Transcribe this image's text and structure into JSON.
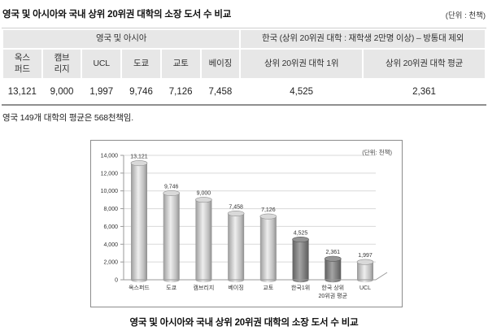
{
  "page": {
    "title": "영국 및 아시아와 국내 상위 20위권 대학의 소장 도서 수 비교",
    "unit_note": "(단위 : 천책)",
    "footnote": "영국 149개 대학의 평균은 568천책임.",
    "chart_caption": "영국 및 아시아와 국내 상위 20위권 대학의 소장 도서 수 비교"
  },
  "table": {
    "groups": [
      {
        "label": "영국 및 아시아",
        "colspan": 6
      },
      {
        "label": "한국 (상위 20위권 대학 : 재학생 2만명 이상) – 방통대 제외",
        "colspan": 2
      }
    ],
    "columns": [
      "옥스\n퍼드",
      "캠브\n리지",
      "UCL",
      "도쿄",
      "교토",
      "베이징",
      "상위 20위권 대학 1위",
      "상위 20위권 대학 평균"
    ],
    "values": [
      "13,121",
      "9,000",
      "1,997",
      "9,746",
      "7,126",
      "7,458",
      "4,525",
      "2,361"
    ]
  },
  "chart_data": {
    "type": "bar",
    "title": "영국 및 아시아와 국내 상위 20위권 대학의 소장 도서 수 비교",
    "unit_label": "(단위: 천책)",
    "categories": [
      "옥스퍼드",
      "도쿄",
      "캠브리지",
      "베이징",
      "교토",
      "한국1위",
      "한국 상위\n20위권 평균",
      "UCL"
    ],
    "values": [
      13121,
      9746,
      9000,
      7458,
      7126,
      4525,
      2361,
      1997
    ],
    "value_labels": [
      "13,121",
      "9,746",
      "9,000",
      "7,458",
      "7,126",
      "4,525",
      "2,361",
      "1,997"
    ],
    "bar_styles": [
      "light",
      "light",
      "light",
      "light",
      "light",
      "dark",
      "dark",
      "light"
    ],
    "xlabel": "",
    "ylabel": "",
    "ylim": [
      0,
      14000
    ],
    "ytick_step": 2000,
    "ytick_labels": [
      "0",
      "2,000",
      "4,000",
      "6,000",
      "8,000",
      "10,000",
      "12,000",
      "14,000"
    ],
    "grid": true,
    "legend": false,
    "style": "3d-cylinder"
  },
  "colors": {
    "header_bg": "#e7e7e7",
    "table_bottom_border": "#8f8f8f",
    "axis": "#9a9a9a",
    "gridline": "#d9d9d9",
    "light_bar_top": "#d9d9d9",
    "light_bar_stroke": "#909090",
    "dark_bar_top": "#939393",
    "dark_bar_stroke": "#5a5a5a",
    "label_text": "#333333"
  }
}
